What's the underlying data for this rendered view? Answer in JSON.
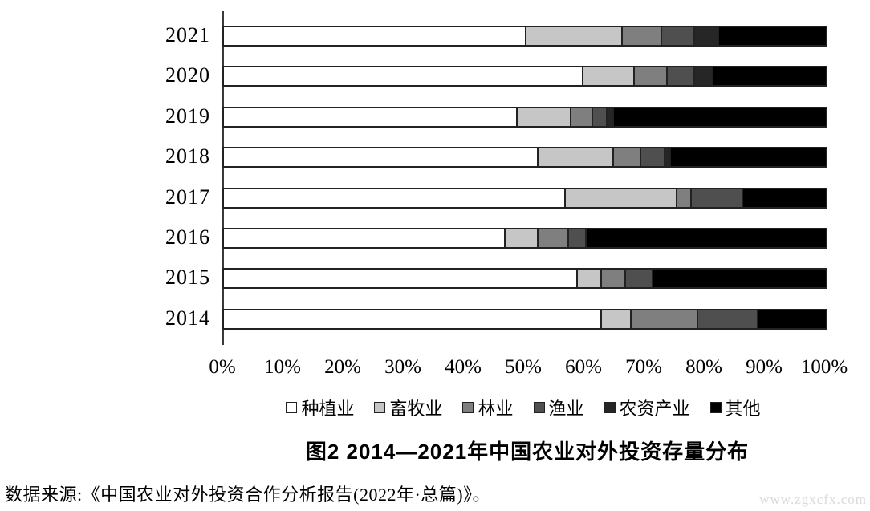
{
  "chart_data": {
    "type": "bar",
    "orientation": "horizontal",
    "stacked": true,
    "value_unit": "percent",
    "title": "图2  2014—2021年中国农业对外投资存量分布",
    "categories": [
      "2021",
      "2020",
      "2019",
      "2018",
      "2017",
      "2016",
      "2015",
      "2014"
    ],
    "series": [
      {
        "name": "种植业",
        "color": "#ffffff",
        "values": [
          50.0,
          59.5,
          48.5,
          52.0,
          56.5,
          46.5,
          58.5,
          62.5
        ]
      },
      {
        "name": "畜牧业",
        "color": "#c6c6c6",
        "values": [
          16.0,
          8.5,
          9.0,
          12.5,
          18.5,
          5.5,
          4.0,
          5.0
        ]
      },
      {
        "name": "林业",
        "color": "#7f7f7f",
        "values": [
          6.5,
          5.5,
          3.5,
          4.5,
          2.5,
          5.0,
          4.0,
          11.0
        ]
      },
      {
        "name": "渔业",
        "color": "#4f4f4f",
        "values": [
          5.5,
          4.5,
          2.5,
          4.0,
          8.5,
          3.0,
          4.5,
          10.0
        ]
      },
      {
        "name": "农资产业",
        "color": "#262626",
        "values": [
          4.0,
          3.0,
          1.0,
          1.0,
          0.0,
          0.0,
          0.0,
          0.0
        ]
      },
      {
        "name": "其他",
        "color": "#000000",
        "values": [
          18.0,
          19.0,
          35.5,
          26.0,
          14.0,
          40.0,
          29.0,
          11.5
        ]
      }
    ],
    "x_axis": {
      "range": [
        0,
        100
      ],
      "tick_labels": [
        "0%",
        "10%",
        "20%",
        "30%",
        "40%",
        "50%",
        "60%",
        "70%",
        "80%",
        "90%",
        "100%"
      ]
    },
    "legend_position": "bottom",
    "grid": false
  },
  "caption": {
    "text": "图2  2014—2021年中国农业对外投资存量分布"
  },
  "source": {
    "text": "数据来源:《中国农业对外投资合作分析报告(2022年·总篇)》。"
  },
  "watermark": {
    "text": "www.zgxcfx.com"
  }
}
